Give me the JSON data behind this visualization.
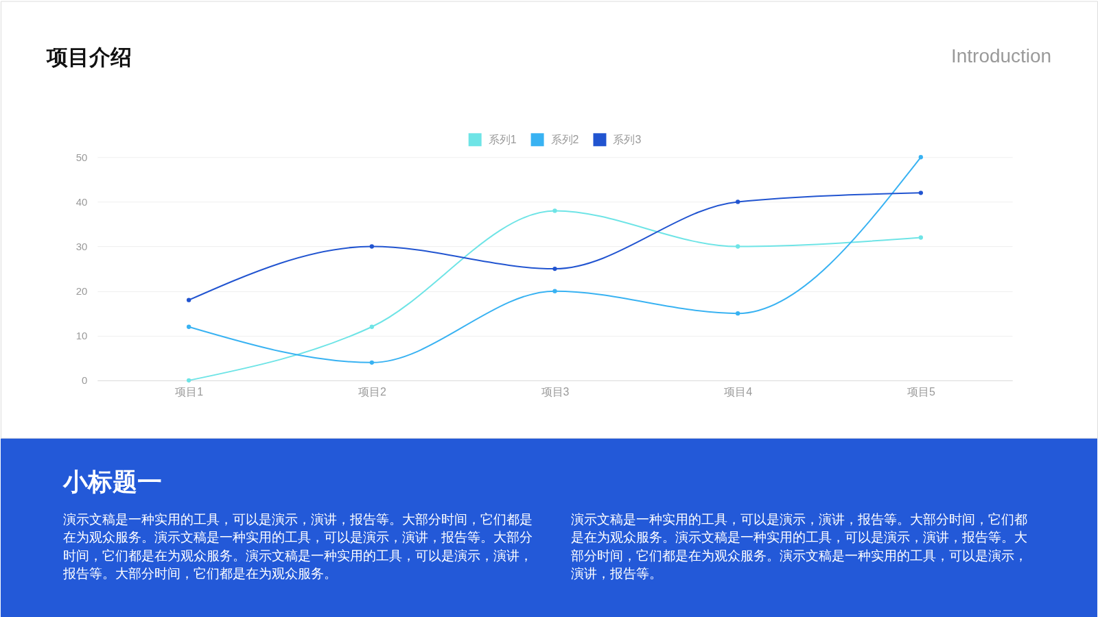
{
  "chart_data": {
    "type": "line",
    "title": "项目介绍",
    "subtitle": "Introduction",
    "categories": [
      "项目1",
      "项目2",
      "项目3",
      "项目4",
      "项目5"
    ],
    "series": [
      {
        "name": "系列1",
        "color": "#6ee4e6",
        "values": [
          0,
          12,
          38,
          30,
          32
        ]
      },
      {
        "name": "系列2",
        "color": "#38b2f2",
        "values": [
          12,
          4,
          20,
          15,
          50
        ]
      },
      {
        "name": "系列3",
        "color": "#2154d0",
        "values": [
          18,
          30,
          25,
          40,
          42
        ]
      }
    ],
    "ylim": [
      0,
      50
    ],
    "yticks": [
      0,
      10,
      20,
      30,
      40,
      50
    ],
    "grid": "y",
    "legend": "top",
    "marker": "circle",
    "line_style": "solid",
    "annotations": [
      "小标题一",
      "演示文稿是一种实用的工具，可以是演示，演讲，报告等。大部分时间，它们都是在为观众服务。演示文稿是一种实用的工具，可以是演示，演讲，报告等。大部分时间，它们都是在为观众服务。演示文稿是一种实用的工具，可以是演示，演讲，报告等。大部分时间，它们都是在为观众服务。",
      "演示文稿是一种实用的工具，可以是演示，演讲，报告等。大部分时间，它们都是在为观众服务。演示文稿是一种实用的工具，可以是演示，演讲，报告等。大部分时间，它们都是在为观众服务。演示文稿是一种实用的工具，可以是演示，演讲，报告等。"
    ]
  }
}
